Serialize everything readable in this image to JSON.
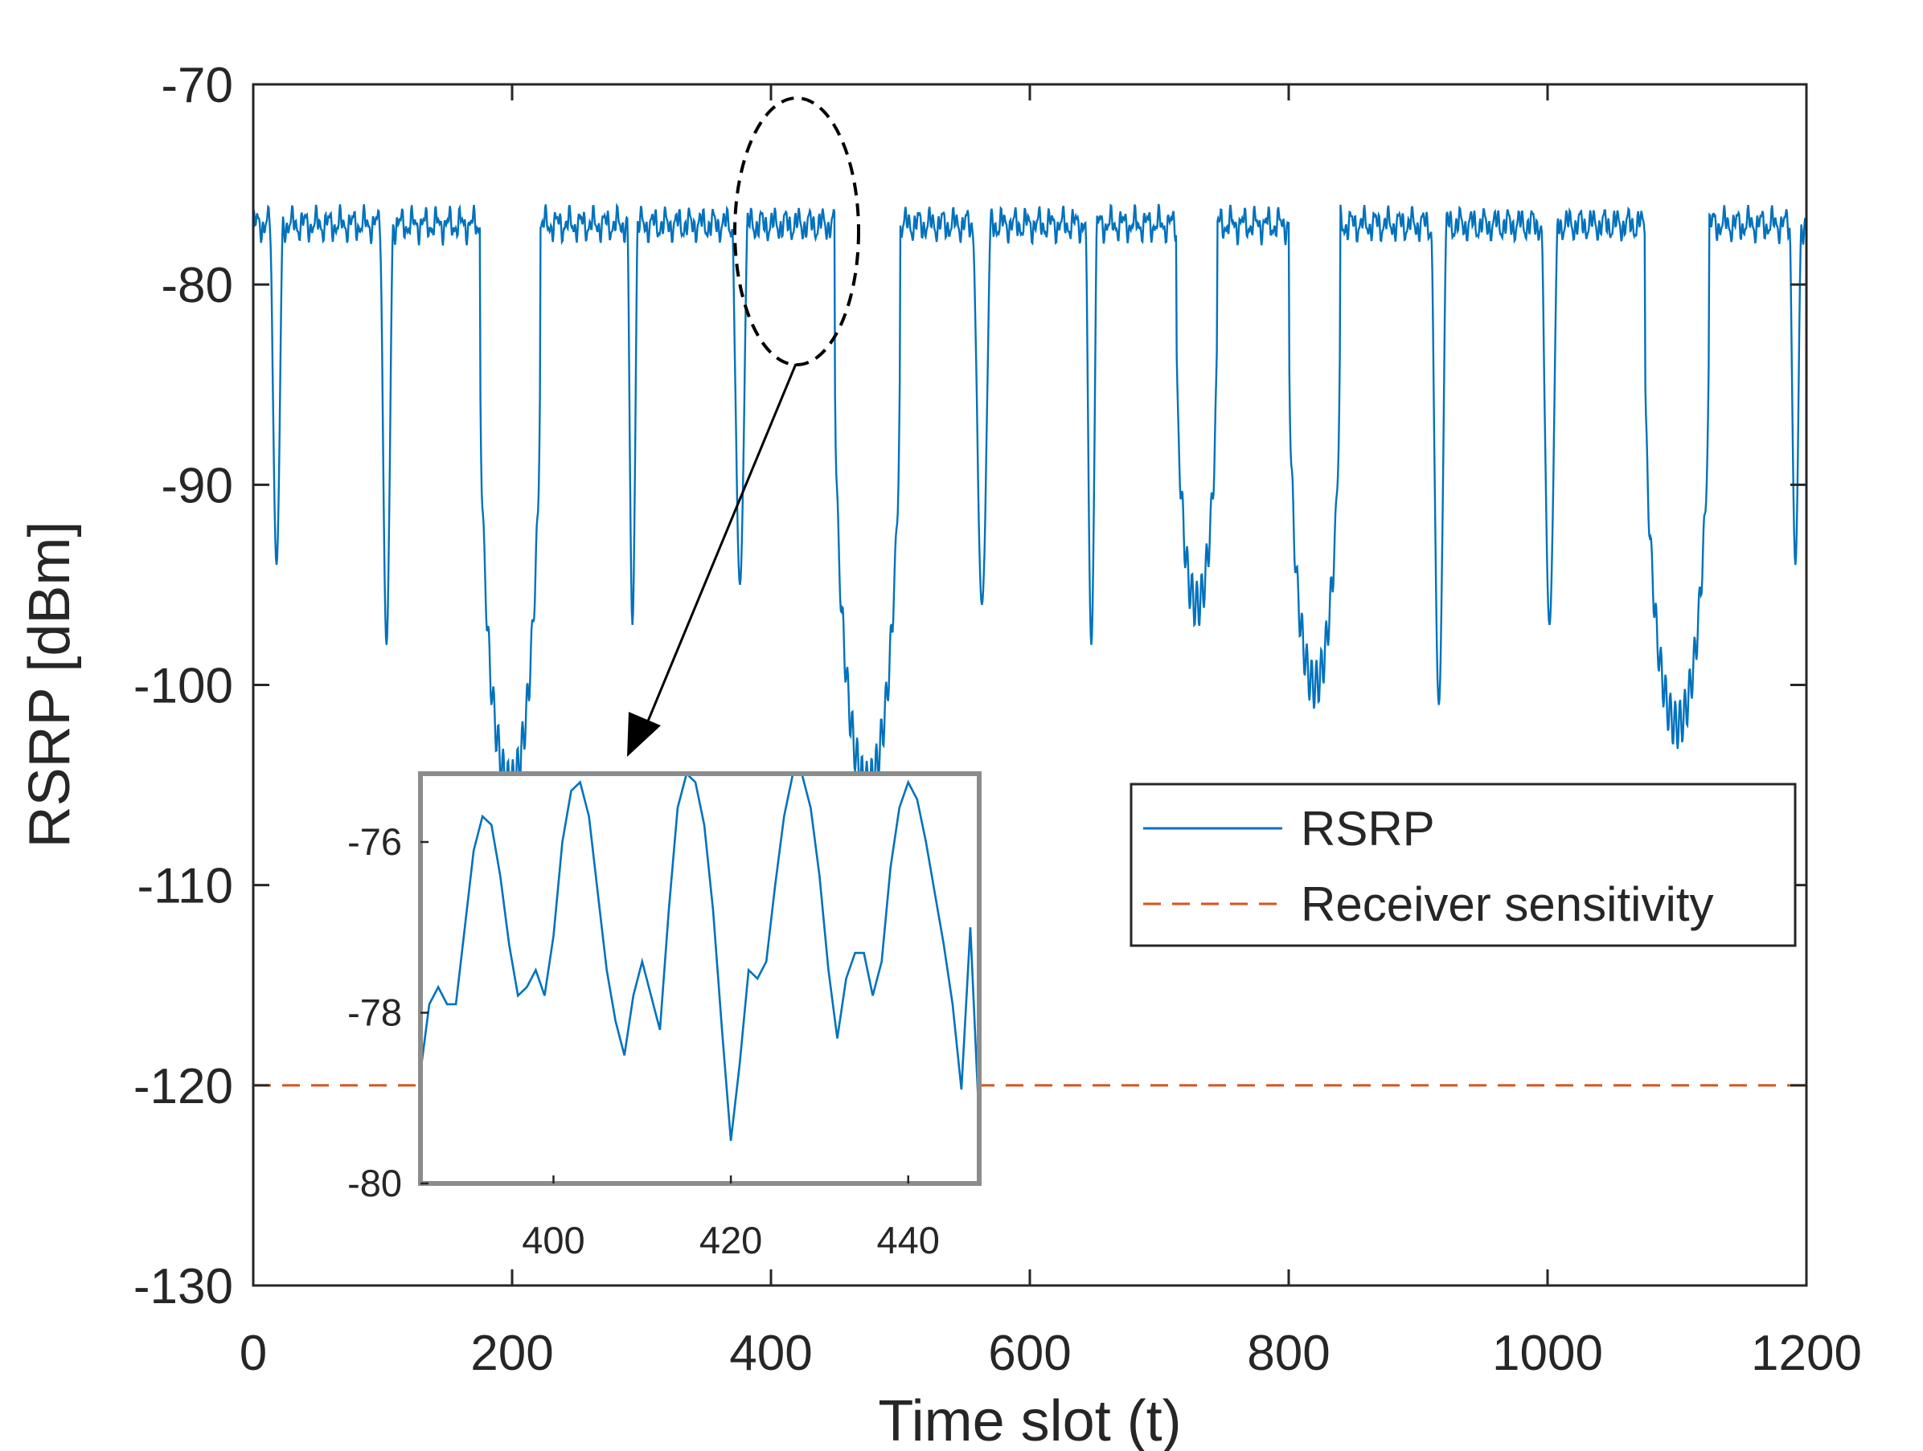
{
  "chart_data": {
    "type": "line",
    "xlabel": "Time slot (t)",
    "ylabel": "RSRP [dBm]",
    "xlim": [
      0,
      1200
    ],
    "ylim": [
      -130,
      -70
    ],
    "xticks": [
      0,
      200,
      400,
      600,
      800,
      1000,
      1200
    ],
    "yticks": [
      -70,
      -80,
      -90,
      -100,
      -110,
      -120,
      -130
    ],
    "xtick_labels": [
      "0",
      "200",
      "400",
      "600",
      "800",
      "1000",
      "1200"
    ],
    "ytick_labels": [
      "-70",
      "-80",
      "-90",
      "-100",
      "-110",
      "-120",
      "-130"
    ],
    "grid": false,
    "legend": {
      "position": "right",
      "entries": [
        {
          "label": "RSRP",
          "style": "solid",
          "color": "#0072BD"
        },
        {
          "label": "Receiver sensitivity",
          "style": "dashed",
          "color": "#D95319"
        }
      ]
    },
    "series": [
      {
        "name": "RSRP",
        "color": "#0072BD",
        "plateau_level": -77,
        "plateau_ripple": 1.2,
        "dips": [
          {
            "start": 13,
            "end": 23,
            "min": -94
          },
          {
            "start": 98,
            "end": 108,
            "min": -98
          },
          {
            "start": 175,
            "end": 222,
            "min": -105
          },
          {
            "start": 289,
            "end": 297,
            "min": -97
          },
          {
            "start": 370,
            "end": 382,
            "min": -95
          },
          {
            "start": 449,
            "end": 500,
            "min": -105
          },
          {
            "start": 556,
            "end": 570,
            "min": -96
          },
          {
            "start": 643,
            "end": 652,
            "min": -98
          },
          {
            "start": 713,
            "end": 745,
            "min": -96
          },
          {
            "start": 800,
            "end": 840,
            "min": -100
          },
          {
            "start": 910,
            "end": 922,
            "min": -101
          },
          {
            "start": 995,
            "end": 1008,
            "min": -97
          },
          {
            "start": 1075,
            "end": 1125,
            "min": -102
          },
          {
            "start": 1187,
            "end": 1196,
            "min": -94
          }
        ]
      },
      {
        "name": "Receiver sensitivity",
        "color": "#D95319",
        "x": [
          0,
          1200
        ],
        "y": [
          -120,
          -120
        ]
      }
    ],
    "inset": {
      "xlim": [
        385,
        448
      ],
      "ylim": [
        -80,
        -75.2
      ],
      "xticks": [
        400,
        420,
        440
      ],
      "yticks": [
        -76,
        -78,
        -80
      ],
      "xtick_labels": [
        "400",
        "420",
        "440"
      ],
      "ytick_labels": [
        "-76",
        "-78",
        "-80"
      ],
      "series": {
        "name": "RSRP",
        "x": [
          385,
          386,
          387,
          388,
          389,
          390,
          391,
          392,
          393,
          394,
          395,
          396,
          397,
          398,
          399,
          400,
          401,
          402,
          403,
          404,
          405,
          406,
          407,
          408,
          409,
          410,
          411,
          412,
          413,
          414,
          415,
          416,
          417,
          418,
          419,
          420,
          421,
          422,
          423,
          424,
          425,
          426,
          427,
          428,
          429,
          430,
          431,
          432,
          433,
          434,
          435,
          436,
          437,
          438,
          439,
          440,
          441,
          442,
          443,
          444,
          445,
          446,
          447,
          448
        ],
        "y": [
          -78.7,
          -77.9,
          -77.7,
          -77.9,
          -77.9,
          -77.0,
          -76.1,
          -75.7,
          -75.8,
          -76.4,
          -77.2,
          -77.8,
          -77.7,
          -77.5,
          -77.8,
          -77.1,
          -76.0,
          -75.4,
          -75.3,
          -75.7,
          -76.6,
          -77.5,
          -78.1,
          -78.5,
          -77.8,
          -77.4,
          -77.8,
          -78.2,
          -76.8,
          -75.6,
          -75.2,
          -75.3,
          -75.8,
          -76.8,
          -78.2,
          -79.5,
          -78.6,
          -77.5,
          -77.6,
          -77.4,
          -76.5,
          -75.7,
          -75.2,
          -75.2,
          -75.6,
          -76.4,
          -77.5,
          -78.3,
          -77.6,
          -77.3,
          -77.3,
          -77.8,
          -77.4,
          -76.3,
          -75.6,
          -75.3,
          -75.5,
          -76.0,
          -76.6,
          -77.2,
          -77.9,
          -78.9,
          -77.0,
          -79.3
        ]
      }
    }
  }
}
